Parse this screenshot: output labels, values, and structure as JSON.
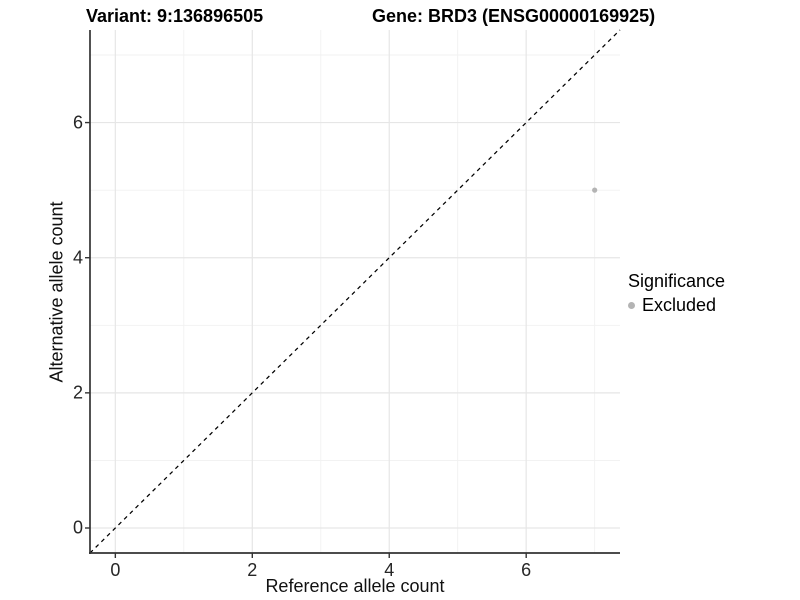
{
  "header": {
    "variant_title": "Variant: 9:136896505",
    "gene_title": "Gene: BRD3 (ENSG00000169925)"
  },
  "chart_data": {
    "type": "scatter",
    "title_left": "Variant: 9:136896505",
    "title_right": "Gene: BRD3 (ENSG00000169925)",
    "xlabel": "Reference allele count",
    "ylabel": "Alternative allele count",
    "xlim": [
      -0.37,
      7.37
    ],
    "ylim": [
      -0.37,
      7.37
    ],
    "x_major_ticks": [
      0,
      2,
      4,
      6
    ],
    "y_major_ticks": [
      0,
      2,
      4,
      6
    ],
    "x_minor_ticks": [
      1,
      3,
      5,
      7
    ],
    "y_minor_ticks": [
      1,
      3,
      5,
      7
    ],
    "grid": true,
    "reference_line": {
      "equation": "y = x",
      "linetype": "dashed",
      "color": "#000000"
    },
    "series": [
      {
        "name": "Excluded",
        "color": "#b4b4b4",
        "points": [
          {
            "x": 7,
            "y": 5
          }
        ]
      }
    ],
    "legend": {
      "title": "Significance",
      "position": "right",
      "items": [
        {
          "label": "Excluded",
          "color": "#b4b4b4"
        }
      ]
    },
    "colors": {
      "axis_line": "#333333",
      "major_grid": "#e6e6e6",
      "minor_grid": "#f1f1f1",
      "tick_text": "#262626"
    }
  }
}
